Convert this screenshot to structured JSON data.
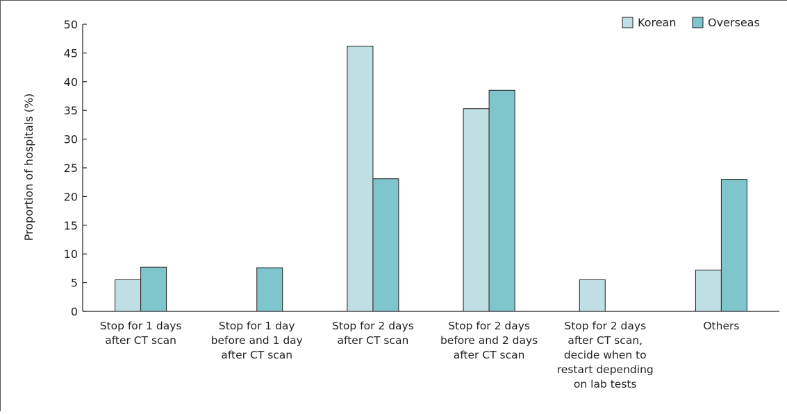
{
  "chart_data": {
    "type": "bar",
    "ylabel": "Proportion of hospitals (%)",
    "xlabel": "",
    "ylim": [
      0,
      50
    ],
    "yticks": [
      0,
      5,
      10,
      15,
      20,
      25,
      30,
      35,
      40,
      45,
      50
    ],
    "categories": [
      [
        "Stop for 1 days",
        "after CT scan"
      ],
      [
        "Stop for 1 day",
        "before and 1 day",
        "after CT scan"
      ],
      [
        "Stop for 2 days",
        "after CT scan"
      ],
      [
        "Stop for 2 days",
        "before and 2 days",
        "after CT scan"
      ],
      [
        "Stop for 2 days",
        "after CT scan,",
        "decide when to",
        "restart depending",
        "on lab tests"
      ],
      [
        "Others"
      ]
    ],
    "series": [
      {
        "name": "Korean",
        "color": "#bfdfe5",
        "values": [
          5.5,
          0,
          46.2,
          35.3,
          5.5,
          7.2
        ]
      },
      {
        "name": "Overseas",
        "color": "#7fc5cc",
        "values": [
          7.7,
          7.6,
          23.1,
          38.5,
          0,
          23.0
        ]
      }
    ],
    "legend": "top-right",
    "grid": false
  }
}
